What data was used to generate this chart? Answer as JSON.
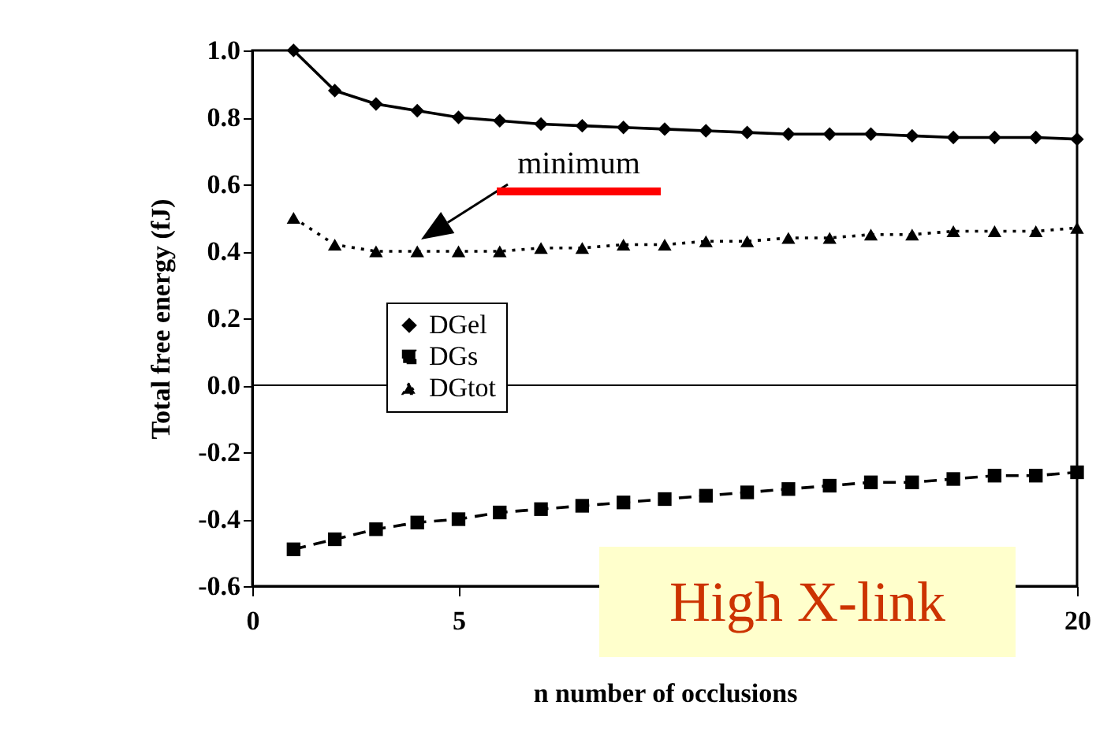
{
  "chart_data": {
    "type": "line",
    "xlabel": "n number of occlusions",
    "ylabel": "Total free energy (fJ)",
    "x": [
      1,
      2,
      3,
      4,
      5,
      6,
      7,
      8,
      9,
      10,
      11,
      12,
      13,
      14,
      15,
      16,
      17,
      18,
      19,
      20
    ],
    "series": [
      {
        "name": "DGel",
        "color": "#000000",
        "marker": "diamond",
        "line_style": "solid",
        "values": [
          1.0,
          0.88,
          0.84,
          0.82,
          0.8,
          0.79,
          0.78,
          0.775,
          0.77,
          0.765,
          0.76,
          0.755,
          0.75,
          0.75,
          0.75,
          0.745,
          0.74,
          0.74,
          0.74,
          0.735
        ]
      },
      {
        "name": "DGs",
        "color": "#000000",
        "marker": "square",
        "line_style": "dashed",
        "values": [
          -0.49,
          -0.46,
          -0.43,
          -0.41,
          -0.4,
          -0.38,
          -0.37,
          -0.36,
          -0.35,
          -0.34,
          -0.33,
          -0.32,
          -0.31,
          -0.3,
          -0.29,
          -0.29,
          -0.28,
          -0.27,
          -0.27,
          -0.26
        ]
      },
      {
        "name": "DGtot",
        "color": "#000000",
        "marker": "triangle",
        "line_style": "dotted",
        "values": [
          0.5,
          0.42,
          0.4,
          0.4,
          0.4,
          0.4,
          0.41,
          0.41,
          0.42,
          0.42,
          0.43,
          0.43,
          0.44,
          0.44,
          0.45,
          0.45,
          0.46,
          0.46,
          0.46,
          0.47
        ]
      }
    ],
    "xlim": [
      0,
      20
    ],
    "xticks": [
      0,
      5,
      20
    ],
    "ylim": [
      -0.6,
      1.0
    ],
    "yticks": [
      {
        "value": -0.6,
        "label": "-0.6"
      },
      {
        "value": -0.4,
        "label": "-0.4"
      },
      {
        "value": -0.2,
        "label": "-0.2"
      },
      {
        "value": 0,
        "label": "0.0"
      },
      {
        "value": 0.2,
        "label": "0.2"
      },
      {
        "value": 0.4,
        "label": "0.4"
      },
      {
        "value": 0.6,
        "label": "0.6"
      },
      {
        "value": 0.8,
        "label": "0.8"
      },
      {
        "value": 1.0,
        "label": "1.0"
      }
    ],
    "ref_lines": [
      {
        "axis": "y",
        "value": 0,
        "color": "#000000"
      }
    ],
    "annotations": [
      "minimum",
      "High X-link"
    ],
    "grid": false,
    "legend": "left"
  }
}
